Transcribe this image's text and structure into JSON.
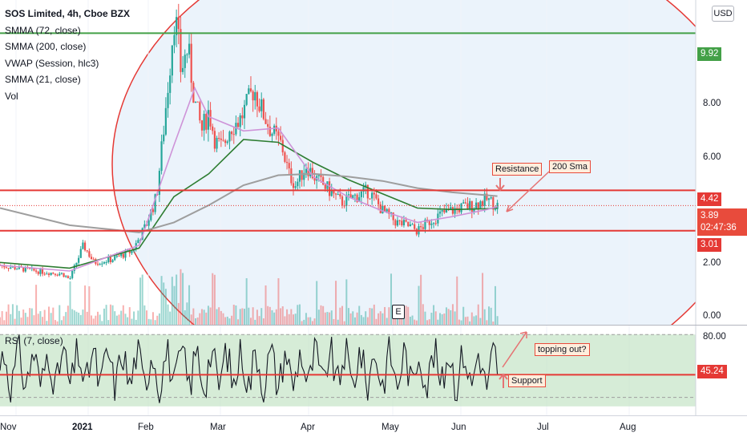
{
  "header": {
    "symbol_line": "SOS Limited, 4h, Cboe BZX",
    "indicators": [
      "SMMA (72, close)",
      "SMMA (200, close)",
      "VWAP (Session, hlc3)",
      "SMMA (21, close)",
      "Vol"
    ],
    "currency_button": "USD"
  },
  "price_axis": {
    "ticks": [
      "8.00",
      "6.00",
      "2.00",
      "0.00"
    ],
    "tags": {
      "level_top": "9.92",
      "resistance": "4.42",
      "last_price": "3.89",
      "countdown": "02:47:36",
      "support": "3.01"
    }
  },
  "rsi_panel": {
    "label": "RSI (7, close)",
    "ticks": [
      "80.00"
    ],
    "current": "45.24"
  },
  "time_axis": [
    "Nov",
    "2021",
    "Feb",
    "Mar",
    "Apr",
    "May",
    "Jun",
    "Jul",
    "Aug"
  ],
  "annotations": {
    "resistance": "Resistance",
    "sma200": "200 Sma",
    "topping": "topping out?",
    "support": "Support",
    "earnings": "E"
  },
  "colors": {
    "up": "#26a69a",
    "down": "#ef5350",
    "level_line": "#e53935",
    "top_level_line": "#43a047",
    "smma72": "#2e7d32",
    "smma200": "#9e9e9e",
    "smma21": "#ce93d8",
    "arc_fill": "#dbe9f7",
    "arc_stroke": "#e53935",
    "rsi_band": "#c8e6c9",
    "rsi_line": "#131722"
  },
  "chart_data": {
    "type": "candlestick",
    "title": "SOS Limited, 4h, Cboe BZX",
    "ylim": [
      0,
      10.8
    ],
    "rsi_ylim": [
      0,
      100
    ],
    "x_labels": [
      "Nov",
      "2021",
      "Feb",
      "Mar",
      "Apr",
      "May",
      "Jun",
      "Jul",
      "Aug"
    ],
    "horizontal_levels": [
      9.92,
      4.42,
      3.01
    ],
    "last_price": 3.89,
    "rsi_current": 45.24,
    "price_path": [
      [
        0.0,
        1.8
      ],
      [
        0.05,
        1.6
      ],
      [
        0.09,
        1.5
      ],
      [
        0.1,
        1.3
      ],
      [
        0.12,
        2.5
      ],
      [
        0.135,
        1.9
      ],
      [
        0.16,
        2.0
      ],
      [
        0.19,
        2.3
      ],
      [
        0.21,
        3.2
      ],
      [
        0.225,
        4.2
      ],
      [
        0.235,
        6.5
      ],
      [
        0.245,
        9.0
      ],
      [
        0.25,
        10.5
      ],
      [
        0.255,
        10.0
      ],
      [
        0.26,
        8.6
      ],
      [
        0.27,
        9.4
      ],
      [
        0.28,
        7.5
      ],
      [
        0.29,
        6.5
      ],
      [
        0.3,
        7.2
      ],
      [
        0.31,
        6.1
      ],
      [
        0.32,
        5.9
      ],
      [
        0.33,
        6.6
      ],
      [
        0.345,
        6.9
      ],
      [
        0.355,
        7.4
      ],
      [
        0.365,
        8.0
      ],
      [
        0.375,
        7.3
      ],
      [
        0.39,
        6.5
      ],
      [
        0.405,
        6.0
      ],
      [
        0.415,
        5.0
      ],
      [
        0.425,
        4.6
      ],
      [
        0.44,
        5.3
      ],
      [
        0.455,
        4.8
      ],
      [
        0.47,
        4.5
      ],
      [
        0.49,
        4.0
      ],
      [
        0.51,
        4.2
      ],
      [
        0.53,
        4.4
      ],
      [
        0.55,
        3.7
      ],
      [
        0.57,
        3.3
      ],
      [
        0.59,
        3.15
      ],
      [
        0.6,
        3.0
      ],
      [
        0.615,
        3.3
      ],
      [
        0.635,
        3.6
      ],
      [
        0.66,
        3.8
      ],
      [
        0.68,
        3.9
      ],
      [
        0.7,
        4.1
      ],
      [
        0.715,
        3.89
      ]
    ],
    "series": [
      {
        "name": "SMMA (72, close)",
        "values": [
          [
            0.0,
            1.9
          ],
          [
            0.1,
            1.7
          ],
          [
            0.2,
            2.4
          ],
          [
            0.25,
            4.2
          ],
          [
            0.3,
            5.0
          ],
          [
            0.35,
            6.2
          ],
          [
            0.4,
            6.1
          ],
          [
            0.45,
            5.4
          ],
          [
            0.5,
            4.8
          ],
          [
            0.55,
            4.3
          ],
          [
            0.6,
            3.8
          ],
          [
            0.65,
            3.75
          ],
          [
            0.7,
            3.78
          ],
          [
            0.715,
            3.8
          ]
        ]
      },
      {
        "name": "SMMA (200, close)",
        "values": [
          [
            0.0,
            3.8
          ],
          [
            0.1,
            3.2
          ],
          [
            0.2,
            2.95
          ],
          [
            0.25,
            3.3
          ],
          [
            0.3,
            3.9
          ],
          [
            0.35,
            4.6
          ],
          [
            0.4,
            4.95
          ],
          [
            0.45,
            5.0
          ],
          [
            0.5,
            4.9
          ],
          [
            0.55,
            4.75
          ],
          [
            0.6,
            4.5
          ],
          [
            0.65,
            4.35
          ],
          [
            0.7,
            4.25
          ],
          [
            0.715,
            4.22
          ]
        ]
      },
      {
        "name": "SMMA (21, close)",
        "values": [
          [
            0.0,
            1.8
          ],
          [
            0.1,
            1.6
          ],
          [
            0.2,
            2.5
          ],
          [
            0.25,
            6.0
          ],
          [
            0.28,
            8.0
          ],
          [
            0.3,
            7.0
          ],
          [
            0.35,
            6.5
          ],
          [
            0.4,
            6.6
          ],
          [
            0.45,
            4.9
          ],
          [
            0.5,
            4.2
          ],
          [
            0.55,
            3.7
          ],
          [
            0.6,
            3.3
          ],
          [
            0.65,
            3.5
          ],
          [
            0.7,
            3.75
          ],
          [
            0.715,
            3.85
          ]
        ]
      }
    ]
  }
}
